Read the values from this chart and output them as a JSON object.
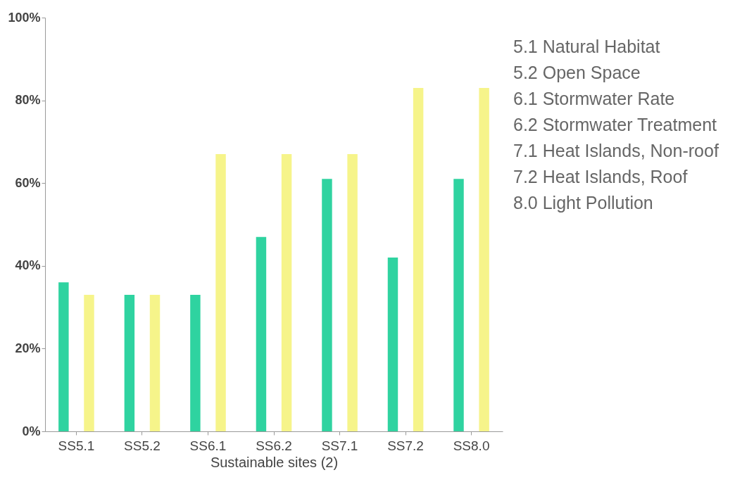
{
  "chart_data": {
    "type": "bar",
    "xlabel": "Sustainable sites (2)",
    "categories": [
      "SS5.1",
      "SS5.2",
      "SS6.1",
      "SS6.2",
      "SS7.1",
      "SS7.2",
      "SS8.0"
    ],
    "series": [
      {
        "color": "#2fd3a0",
        "values": [
          36,
          33,
          33,
          47,
          61,
          42,
          61
        ]
      },
      {
        "color": "#f6f48a",
        "values": [
          33,
          33,
          67,
          67,
          67,
          83,
          83
        ]
      }
    ],
    "ylim": [
      0,
      100
    ],
    "yticks": [
      {
        "value": 0,
        "label": "0%"
      },
      {
        "value": 20,
        "label": "20%"
      },
      {
        "value": 40,
        "label": "40%"
      },
      {
        "value": 60,
        "label": "60%"
      },
      {
        "value": 80,
        "label": "80%"
      },
      {
        "value": 100,
        "label": "100%"
      }
    ],
    "annotations": [
      "5.1 Natural Habitat",
      "5.2 Open Space",
      "6.1 Stormwater Rate",
      "6.2 Stormwater Treatment",
      "7.1 Heat Islands, Non-roof",
      "7.2 Heat Islands, Roof",
      "8.0 Light Pollution"
    ]
  }
}
